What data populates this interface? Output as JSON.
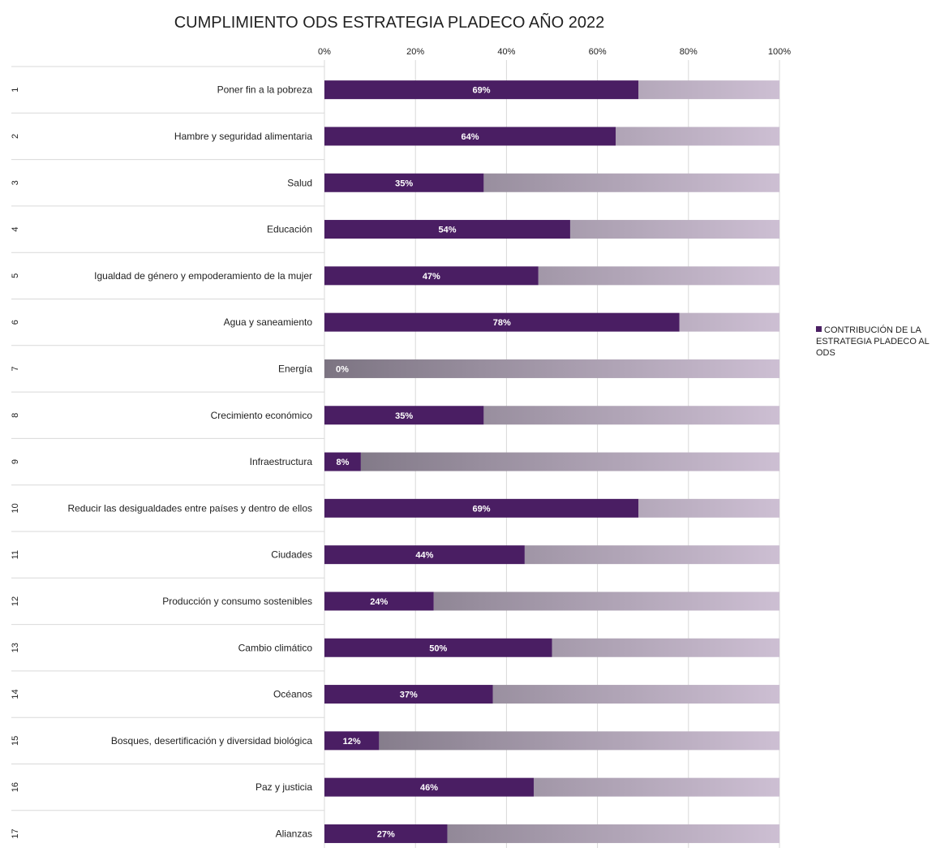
{
  "chart_data": {
    "type": "bar",
    "orientation": "horizontal",
    "stacked": "percent",
    "title": "CUMPLIMIENTO ODS ESTRATEGIA PLADECO AÑO 2022",
    "xlim": [
      0,
      100
    ],
    "x_ticks": [
      "0%",
      "20%",
      "40%",
      "60%",
      "80%",
      "100%"
    ],
    "grid": true,
    "legend_position": "right",
    "group_labels": [
      "1",
      "2",
      "3",
      "4",
      "5",
      "6",
      "7",
      "8",
      "9",
      "10",
      "11",
      "12",
      "13",
      "14",
      "15",
      "16",
      "17"
    ],
    "categories": [
      "Poner fin a la pobreza",
      "Hambre y seguridad alimentaria",
      "Salud",
      "Educación",
      "Igualdad de género y empoderamiento de la mujer",
      "Agua y saneamiento",
      "Energía",
      "Crecimiento económico",
      "Infraestructura",
      "Reducir las desigualdades entre países y dentro de ellos",
      "Ciudades",
      "Producción y consumo sostenibles",
      "Cambio climático",
      "Océanos",
      "Bosques, desertificación y diversidad biológica",
      "Paz y justicia",
      "Alianzas"
    ],
    "series": [
      {
        "name": "CONTRIBUCIÓN DE LA ESTRATEGIA PLADECO AL ODS",
        "values": [
          69,
          64,
          35,
          54,
          47,
          78,
          0,
          35,
          8,
          69,
          44,
          24,
          50,
          37,
          12,
          46,
          27
        ],
        "data_labels": [
          "69%",
          "64%",
          "35%",
          "54%",
          "47%",
          "78%",
          "0%",
          "35%",
          "8%",
          "69%",
          "44%",
          "24%",
          "50%",
          "37%",
          "12%",
          "46%",
          "27%"
        ]
      },
      {
        "values": [
          31,
          36,
          65,
          46,
          53,
          22,
          100,
          65,
          92,
          31,
          56,
          76,
          50,
          63,
          88,
          54,
          73
        ]
      }
    ],
    "colors": {
      "contribution": "#4a1e63",
      "remainder_start": "#7c7482",
      "remainder_end": "#cdbfd3",
      "grid": "#d9d9d9",
      "text": "#222222",
      "label_on_bar": "#ffffff"
    }
  },
  "legend": {
    "label": "CONTRIBUCIÓN DE LA ESTRATEGIA PLADECO AL ODS"
  }
}
